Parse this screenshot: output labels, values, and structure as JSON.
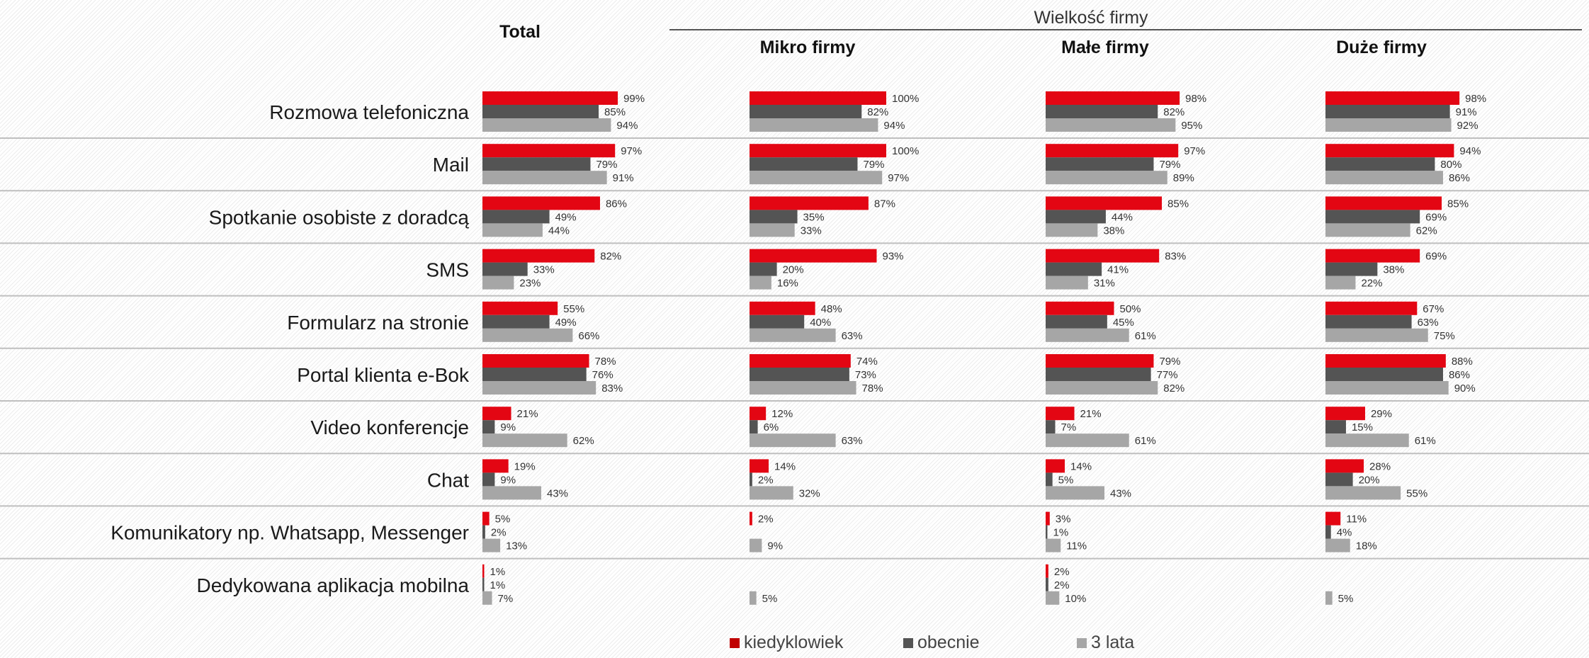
{
  "chart_data": {
    "type": "bar",
    "group_header": "Wielkość firmy",
    "panels": [
      "Total",
      "Mikro firmy",
      "Małe firmy",
      "Duże firmy"
    ],
    "categories": [
      "Rozmowa  telefoniczna",
      "Mail",
      "Spotkanie osobiste z doradcą",
      "SMS",
      "Formularz  na stronie",
      "Portal klienta e-Bok",
      "Video konferencje",
      "Chat",
      "Komunikatory np.  Whatsapp, Messenger",
      "Dedykowana aplikacja mobilna"
    ],
    "series": [
      {
        "name": "kiedyklowiek",
        "color": "#e30613",
        "values": [
          [
            99,
            100,
            98,
            98
          ],
          [
            97,
            100,
            97,
            94
          ],
          [
            86,
            87,
            85,
            85
          ],
          [
            82,
            93,
            83,
            69
          ],
          [
            55,
            48,
            50,
            67
          ],
          [
            78,
            74,
            79,
            88
          ],
          [
            21,
            12,
            21,
            29
          ],
          [
            19,
            14,
            14,
            28
          ],
          [
            5,
            2,
            3,
            11
          ],
          [
            1,
            null,
            2,
            null
          ]
        ]
      },
      {
        "name": "obecnie",
        "color": "#545454",
        "values": [
          [
            85,
            82,
            82,
            91
          ],
          [
            79,
            79,
            79,
            80
          ],
          [
            49,
            35,
            44,
            69
          ],
          [
            33,
            20,
            41,
            38
          ],
          [
            49,
            40,
            45,
            63
          ],
          [
            76,
            73,
            77,
            86
          ],
          [
            9,
            6,
            7,
            15
          ],
          [
            9,
            2,
            5,
            20
          ],
          [
            2,
            null,
            1,
            4
          ],
          [
            1,
            null,
            2,
            null
          ]
        ]
      },
      {
        "name": "3 lata",
        "color": "#a6a6a6",
        "values": [
          [
            94,
            94,
            95,
            92
          ],
          [
            91,
            97,
            89,
            86
          ],
          [
            44,
            33,
            38,
            62
          ],
          [
            23,
            16,
            31,
            22
          ],
          [
            66,
            63,
            61,
            75
          ],
          [
            83,
            78,
            82,
            90
          ],
          [
            62,
            63,
            61,
            61
          ],
          [
            43,
            32,
            43,
            55
          ],
          [
            13,
            9,
            11,
            18
          ],
          [
            7,
            5,
            10,
            5
          ]
        ]
      }
    ],
    "value_suffix": "%",
    "legend_position": "bottom"
  }
}
